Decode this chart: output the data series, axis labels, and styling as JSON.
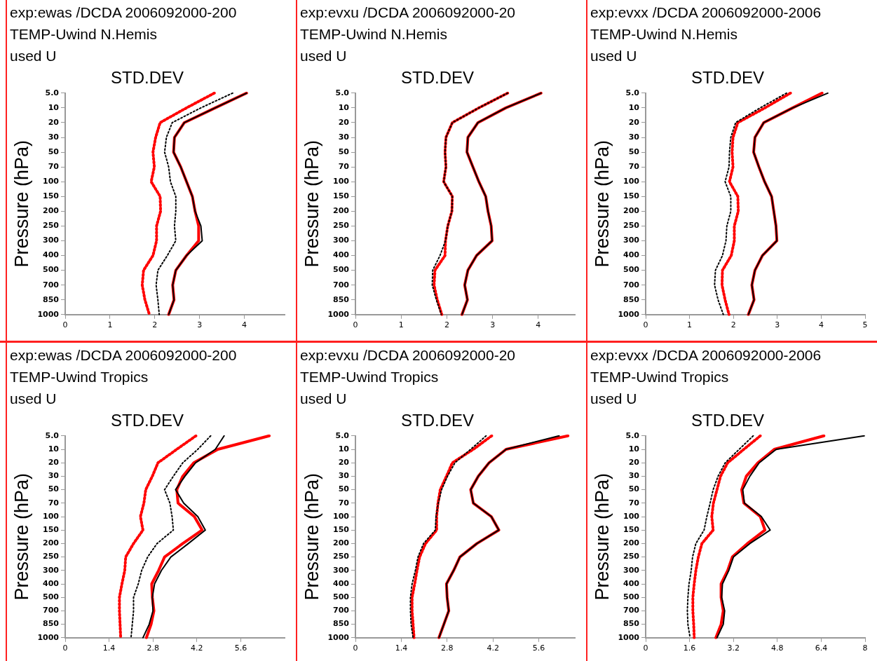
{
  "chart_data": [
    {
      "type": "line",
      "orientation": "horizontal",
      "title": "STD.DEV",
      "ylabel": "Pressure (hPa)",
      "annotations": [
        "exp:ewas /DCDA 2006092000-200",
        "TEMP-Uwind N.Hemis",
        "used U"
      ],
      "categories": [
        "5.0",
        "10",
        "20",
        "30",
        "50",
        "70",
        "100",
        "150",
        "200",
        "250",
        "300",
        "400",
        "500",
        "700",
        "850",
        "1000"
      ],
      "xlim": [
        0,
        4.9
      ],
      "xticks": [
        0,
        1,
        2,
        3,
        4
      ],
      "grid": false,
      "marker": "none",
      "series": [
        {
          "color": "#ff0000",
          "line_style": "solid",
          "values": [
            4.05,
            3.35,
            2.66,
            2.44,
            2.42,
            2.58,
            2.71,
            2.84,
            2.9,
            2.98,
            2.98,
            2.71,
            2.47,
            2.4,
            2.43,
            2.31
          ]
        },
        {
          "color": "#000000",
          "line_style": "solid",
          "values": [
            4.05,
            3.35,
            2.66,
            2.44,
            2.42,
            2.58,
            2.71,
            2.84,
            2.9,
            3.03,
            3.06,
            2.71,
            2.47,
            2.4,
            2.43,
            2.31
          ]
        },
        {
          "color": "#ff0000",
          "line_style": "dotted",
          "values": [
            3.33,
            2.71,
            2.12,
            2.02,
            1.96,
            1.99,
            1.92,
            2.12,
            2.13,
            2.04,
            2.04,
            1.96,
            1.75,
            1.72,
            1.78,
            1.88
          ]
        },
        {
          "color": "#000000",
          "line_style": "dotted",
          "values": [
            3.74,
            3.03,
            2.39,
            2.26,
            2.22,
            2.31,
            2.35,
            2.47,
            2.47,
            2.44,
            2.47,
            2.28,
            2.07,
            2.03,
            2.07,
            2.1
          ]
        }
      ]
    },
    {
      "type": "line",
      "orientation": "horizontal",
      "title": "STD.DEV",
      "ylabel": "Pressure (hPa)",
      "annotations": [
        "exp:evxu /DCDA 2006092000-20",
        "TEMP-Uwind N.Hemis",
        "used U"
      ],
      "categories": [
        "5.0",
        "10",
        "20",
        "30",
        "50",
        "70",
        "100",
        "150",
        "200",
        "250",
        "300",
        "400",
        "500",
        "700",
        "850",
        "1000"
      ],
      "xlim": [
        0,
        4.8
      ],
      "xticks": [
        0,
        1,
        2,
        3,
        4
      ],
      "grid": false,
      "marker": "none",
      "series": [
        {
          "color": "#ff0000",
          "line_style": "solid",
          "values": [
            4.06,
            3.29,
            2.68,
            2.46,
            2.44,
            2.57,
            2.7,
            2.85,
            2.9,
            2.97,
            2.99,
            2.65,
            2.46,
            2.39,
            2.45,
            2.33
          ]
        },
        {
          "color": "#000000",
          "line_style": "solid",
          "values": [
            4.06,
            3.29,
            2.68,
            2.46,
            2.44,
            2.57,
            2.7,
            2.85,
            2.9,
            2.97,
            2.99,
            2.65,
            2.46,
            2.39,
            2.45,
            2.33
          ]
        },
        {
          "color": "#ff0000",
          "line_style": "dotted",
          "values": [
            3.33,
            2.7,
            2.12,
            1.98,
            1.96,
            1.98,
            1.93,
            2.12,
            2.11,
            2.02,
            1.97,
            1.96,
            1.74,
            1.72,
            1.79,
            1.89
          ]
        },
        {
          "color": "#000000",
          "line_style": "dotted",
          "values": [
            3.33,
            2.7,
            2.12,
            1.98,
            1.96,
            1.98,
            1.93,
            2.12,
            2.11,
            2.02,
            1.97,
            1.85,
            1.69,
            1.68,
            1.77,
            1.88
          ]
        }
      ]
    },
    {
      "type": "line",
      "orientation": "horizontal",
      "title": "STD.DEV",
      "ylabel": "Pressure (hPa)",
      "annotations": [
        "exp:evxx /DCDA 2006092000-2006",
        "TEMP-Uwind N.Hemis",
        "used U"
      ],
      "categories": [
        "5.0",
        "10",
        "20",
        "30",
        "50",
        "70",
        "100",
        "150",
        "200",
        "250",
        "300",
        "400",
        "500",
        "700",
        "850",
        "1000"
      ],
      "xlim": [
        0,
        5
      ],
      "xticks": [
        0,
        1,
        2,
        3,
        4,
        5
      ],
      "grid": false,
      "marker": "none",
      "series": [
        {
          "color": "#ff0000",
          "line_style": "solid",
          "values": [
            4.02,
            3.35,
            2.69,
            2.49,
            2.46,
            2.58,
            2.71,
            2.87,
            2.92,
            2.97,
            2.99,
            2.66,
            2.49,
            2.42,
            2.47,
            2.34
          ]
        },
        {
          "color": "#000000",
          "line_style": "solid",
          "values": [
            4.15,
            3.35,
            2.69,
            2.49,
            2.46,
            2.58,
            2.71,
            2.87,
            2.92,
            2.97,
            2.99,
            2.66,
            2.49,
            2.42,
            2.47,
            2.34
          ]
        },
        {
          "color": "#ff0000",
          "line_style": "dotted",
          "values": [
            3.3,
            2.72,
            2.1,
            1.99,
            1.97,
            1.99,
            1.91,
            2.1,
            2.11,
            2.02,
            2.02,
            1.95,
            1.75,
            1.74,
            1.81,
            1.9
          ]
        },
        {
          "color": "#000000",
          "line_style": "dotted",
          "values": [
            3.21,
            2.61,
            2.05,
            1.94,
            1.91,
            1.9,
            1.81,
            1.94,
            1.94,
            1.85,
            1.83,
            1.75,
            1.59,
            1.57,
            1.65,
            1.77
          ]
        }
      ]
    },
    {
      "type": "line",
      "orientation": "horizontal",
      "title": "STD.DEV",
      "ylabel": "Pressure (hPa)",
      "annotations": [
        "exp:ewas /DCDA 2006092000-200",
        "TEMP-Uwind Tropics",
        "used U"
      ],
      "categories": [
        "5.0",
        "10",
        "20",
        "30",
        "50",
        "70",
        "100",
        "150",
        "200",
        "250",
        "300",
        "400",
        "500",
        "700",
        "850",
        "1000"
      ],
      "xlim": [
        0,
        7
      ],
      "xticks": [
        0,
        1.4,
        2.8,
        4.2,
        5.6
      ],
      "grid": false,
      "marker": "none",
      "series": [
        {
          "color": "#ff0000",
          "line_style": "solid",
          "values": [
            6.51,
            4.87,
            4.1,
            3.75,
            3.56,
            3.6,
            4.12,
            4.37,
            3.75,
            3.17,
            2.98,
            2.76,
            2.78,
            2.83,
            2.74,
            2.59
          ]
        },
        {
          "color": "#000000",
          "line_style": "solid",
          "values": [
            5.07,
            4.79,
            4.16,
            3.82,
            3.52,
            3.78,
            4.23,
            4.47,
            3.93,
            3.37,
            3.07,
            2.85,
            2.78,
            2.8,
            2.68,
            2.48
          ]
        },
        {
          "color": "#ff0000",
          "line_style": "dotted",
          "values": [
            4.17,
            3.56,
            2.96,
            2.78,
            2.57,
            2.51,
            2.4,
            2.48,
            2.18,
            1.93,
            1.9,
            1.81,
            1.73,
            1.73,
            1.75,
            1.77
          ]
        },
        {
          "color": "#000000",
          "line_style": "dotted",
          "values": [
            4.64,
            4.23,
            3.75,
            3.45,
            3.17,
            3.34,
            3.41,
            3.45,
            2.93,
            2.63,
            2.44,
            2.33,
            2.18,
            2.18,
            2.14,
            2.1
          ]
        }
      ]
    },
    {
      "type": "line",
      "orientation": "horizontal",
      "title": "STD.DEV",
      "ylabel": "Pressure (hPa)",
      "annotations": [
        "exp:evxu /DCDA 2006092000-20",
        "TEMP-Uwind Tropics",
        "used U"
      ],
      "categories": [
        "5.0",
        "10",
        "20",
        "30",
        "50",
        "70",
        "100",
        "150",
        "200",
        "250",
        "300",
        "400",
        "500",
        "700",
        "850",
        "1000"
      ],
      "xlim": [
        0,
        6.7
      ],
      "xticks": [
        0,
        1.4,
        2.8,
        4.2,
        5.6
      ],
      "grid": false,
      "marker": "none",
      "series": [
        {
          "color": "#ff0000",
          "line_style": "solid",
          "values": [
            6.49,
            4.6,
            4.08,
            3.75,
            3.52,
            3.6,
            4.15,
            4.38,
            3.71,
            3.19,
            3.0,
            2.78,
            2.8,
            2.85,
            2.7,
            2.55
          ]
        },
        {
          "color": "#000000",
          "line_style": "solid",
          "values": [
            6.22,
            4.6,
            4.08,
            3.75,
            3.52,
            3.6,
            4.15,
            4.38,
            3.71,
            3.19,
            3.0,
            2.78,
            2.8,
            2.85,
            2.7,
            2.55
          ]
        },
        {
          "color": "#ff0000",
          "line_style": "dotted",
          "values": [
            4.16,
            3.6,
            2.96,
            2.78,
            2.59,
            2.52,
            2.48,
            2.48,
            2.14,
            1.96,
            1.88,
            1.81,
            1.73,
            1.73,
            1.76,
            1.79
          ]
        },
        {
          "color": "#000000",
          "line_style": "dotted",
          "values": [
            3.99,
            3.52,
            3.04,
            2.81,
            2.63,
            2.53,
            2.46,
            2.44,
            2.08,
            1.91,
            1.83,
            1.73,
            1.68,
            1.68,
            1.7,
            1.76
          ]
        }
      ]
    },
    {
      "type": "line",
      "orientation": "horizontal",
      "title": "STD.DEV",
      "ylabel": "Pressure (hPa)",
      "annotations": [
        "exp:evxx /DCDA 2006092000-2006",
        "TEMP-Uwind Tropics",
        "used U"
      ],
      "categories": [
        "5.0",
        "10",
        "20",
        "30",
        "50",
        "70",
        "100",
        "150",
        "200",
        "250",
        "300",
        "400",
        "500",
        "700",
        "850",
        "1000"
      ],
      "xlim": [
        0,
        8
      ],
      "xticks": [
        0,
        1.6,
        3.2,
        4.8,
        6.4,
        8
      ],
      "grid": false,
      "marker": "none",
      "series": [
        {
          "color": "#ff0000",
          "line_style": "solid",
          "values": [
            6.5,
            4.69,
            4.09,
            3.67,
            3.5,
            3.58,
            4.18,
            4.35,
            3.71,
            3.16,
            2.99,
            2.75,
            2.75,
            2.83,
            2.75,
            2.56
          ]
        },
        {
          "color": "#000000",
          "line_style": "solid",
          "values": [
            7.97,
            4.76,
            4.14,
            3.8,
            3.54,
            3.6,
            4.22,
            4.54,
            3.8,
            3.2,
            3.03,
            2.8,
            2.77,
            2.88,
            2.83,
            2.6
          ]
        },
        {
          "color": "#ff0000",
          "line_style": "dotted",
          "values": [
            4.18,
            3.58,
            2.99,
            2.73,
            2.6,
            2.47,
            2.41,
            2.46,
            2.05,
            1.92,
            1.83,
            1.77,
            1.72,
            1.72,
            1.75,
            1.77
          ]
        },
        {
          "color": "#000000",
          "line_style": "dotted",
          "values": [
            3.92,
            3.41,
            2.9,
            2.64,
            2.46,
            2.35,
            2.23,
            2.13,
            1.83,
            1.71,
            1.66,
            1.58,
            1.54,
            1.52,
            1.54,
            1.62
          ]
        }
      ]
    }
  ]
}
